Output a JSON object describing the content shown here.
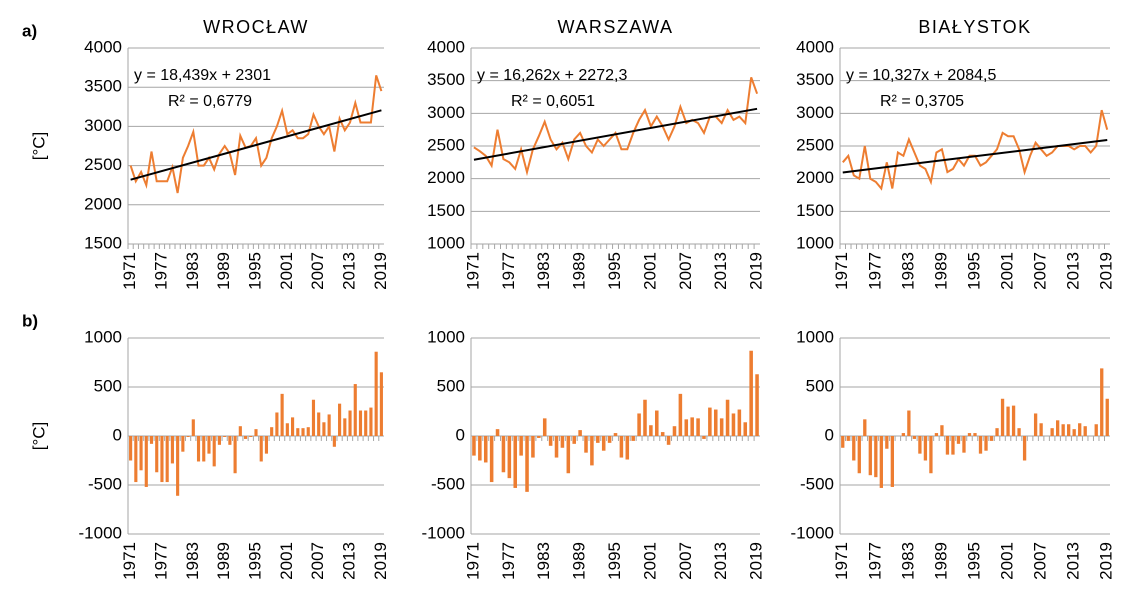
{
  "chart_data": [
    {
      "type": "line",
      "label": "a)",
      "title": "WROCŁAW",
      "ylabel": "[°C]",
      "color": "#ed7d31",
      "trend_color": "#000000",
      "equation": "y = 18,439x + 2301",
      "r2": "R² = 0,6779",
      "x": [
        1971,
        1972,
        1973,
        1974,
        1975,
        1976,
        1977,
        1978,
        1979,
        1980,
        1981,
        1982,
        1983,
        1984,
        1985,
        1986,
        1987,
        1988,
        1989,
        1990,
        1991,
        1992,
        1993,
        1994,
        1995,
        1996,
        1997,
        1998,
        1999,
        2000,
        2001,
        2002,
        2003,
        2004,
        2005,
        2006,
        2007,
        2008,
        2009,
        2010,
        2011,
        2012,
        2013,
        2014,
        2015,
        2016,
        2017,
        2018,
        2019
      ],
      "values": [
        2500,
        2300,
        2420,
        2250,
        2680,
        2300,
        2300,
        2300,
        2480,
        2150,
        2600,
        2750,
        2930,
        2500,
        2500,
        2600,
        2450,
        2650,
        2750,
        2650,
        2380,
        2880,
        2730,
        2750,
        2850,
        2500,
        2600,
        2850,
        3000,
        3200,
        2900,
        2950,
        2850,
        2850,
        2900,
        3150,
        3000,
        2900,
        3000,
        2680,
        3100,
        2950,
        3050,
        3300,
        3050,
        3050,
        3050,
        3650,
        3450
      ],
      "trendline": [
        2320,
        3205
      ],
      "xticks": [
        1971,
        1977,
        1983,
        1989,
        1995,
        2001,
        2007,
        2013,
        2019
      ],
      "ylim": [
        1500,
        4000
      ],
      "yticks": [
        1500,
        2000,
        2500,
        3000,
        3500,
        4000
      ],
      "grid": true
    },
    {
      "type": "line",
      "title": "WARSZAWA",
      "color": "#ed7d31",
      "trend_color": "#000000",
      "equation": "y = 16,262x + 2272,3",
      "r2": "R² = 0,6051",
      "x": [
        1971,
        1972,
        1973,
        1974,
        1975,
        1976,
        1977,
        1978,
        1979,
        1980,
        1981,
        1982,
        1983,
        1984,
        1985,
        1986,
        1987,
        1988,
        1989,
        1990,
        1991,
        1992,
        1993,
        1994,
        1995,
        1996,
        1997,
        1998,
        1999,
        2000,
        2001,
        2002,
        2003,
        2004,
        2005,
        2006,
        2007,
        2008,
        2009,
        2010,
        2011,
        2012,
        2013,
        2014,
        2015,
        2016,
        2017,
        2018,
        2019
      ],
      "values": [
        2480,
        2420,
        2350,
        2200,
        2750,
        2300,
        2250,
        2150,
        2450,
        2100,
        2450,
        2650,
        2870,
        2600,
        2450,
        2550,
        2300,
        2600,
        2700,
        2500,
        2400,
        2600,
        2500,
        2600,
        2700,
        2450,
        2450,
        2700,
        2900,
        3050,
        2800,
        2950,
        2800,
        2600,
        2800,
        3100,
        2850,
        2900,
        2850,
        2700,
        2950,
        2950,
        2850,
        3050,
        2900,
        2950,
        2850,
        3550,
        3300
      ],
      "trendline": [
        2289,
        3069
      ],
      "xticks": [
        1971,
        1977,
        1983,
        1989,
        1995,
        2001,
        2007,
        2013,
        2019
      ],
      "ylim": [
        1000,
        4000
      ],
      "yticks": [
        1000,
        1500,
        2000,
        2500,
        3000,
        3500,
        4000
      ],
      "grid": true
    },
    {
      "type": "line",
      "title": "BIAŁYSTOK",
      "color": "#ed7d31",
      "trend_color": "#000000",
      "equation": "y = 10,327x + 2084,5",
      "r2": "R² = 0,3705",
      "x": [
        1971,
        1972,
        1973,
        1974,
        1975,
        1976,
        1977,
        1978,
        1979,
        1980,
        1981,
        1982,
        1983,
        1984,
        1985,
        1986,
        1987,
        1988,
        1989,
        1990,
        1991,
        1992,
        1993,
        1994,
        1995,
        1996,
        1997,
        1998,
        1999,
        2000,
        2001,
        2002,
        2003,
        2004,
        2005,
        2006,
        2007,
        2008,
        2009,
        2010,
        2011,
        2012,
        2013,
        2014,
        2015,
        2016,
        2017,
        2018,
        2019
      ],
      "values": [
        2250,
        2350,
        2050,
        2000,
        2500,
        2000,
        1950,
        1850,
        2250,
        1850,
        2400,
        2350,
        2600,
        2400,
        2200,
        2150,
        1950,
        2400,
        2450,
        2100,
        2150,
        2300,
        2200,
        2350,
        2350,
        2200,
        2250,
        2350,
        2450,
        2700,
        2650,
        2650,
        2450,
        2100,
        2350,
        2550,
        2450,
        2350,
        2400,
        2500,
        2500,
        2500,
        2450,
        2500,
        2500,
        2400,
        2500,
        3050,
        2750
      ],
      "trendline": [
        2095,
        2591
      ],
      "xticks": [
        1971,
        1977,
        1983,
        1989,
        1995,
        2001,
        2007,
        2013,
        2019
      ],
      "ylim": [
        1000,
        4000
      ],
      "yticks": [
        1000,
        1500,
        2000,
        2500,
        3000,
        3500,
        4000
      ],
      "grid": true
    },
    {
      "type": "bar",
      "label": "b)",
      "ylabel": "[°C]",
      "color": "#ed7d31",
      "x": [
        1971,
        1972,
        1973,
        1974,
        1975,
        1976,
        1977,
        1978,
        1979,
        1980,
        1981,
        1982,
        1983,
        1984,
        1985,
        1986,
        1987,
        1988,
        1989,
        1990,
        1991,
        1992,
        1993,
        1994,
        1995,
        1996,
        1997,
        1998,
        1999,
        2000,
        2001,
        2002,
        2003,
        2004,
        2005,
        2006,
        2007,
        2008,
        2009,
        2010,
        2011,
        2012,
        2013,
        2014,
        2015,
        2016,
        2017,
        2018,
        2019
      ],
      "values": [
        -250,
        -470,
        -350,
        -520,
        -80,
        -370,
        -470,
        -470,
        -280,
        -610,
        -160,
        -10,
        170,
        -260,
        -260,
        -180,
        -310,
        -90,
        -10,
        -90,
        -380,
        100,
        -30,
        -10,
        70,
        -260,
        -180,
        90,
        240,
        430,
        130,
        190,
        80,
        80,
        90,
        370,
        240,
        140,
        220,
        -110,
        330,
        180,
        260,
        530,
        260,
        260,
        290,
        860,
        650
      ],
      "xticks": [
        1971,
        1977,
        1983,
        1989,
        1995,
        2001,
        2007,
        2013,
        2019
      ],
      "ylim": [
        -1000,
        1000
      ],
      "yticks": [
        -1000,
        -500,
        0,
        500,
        1000
      ],
      "grid": true
    },
    {
      "type": "bar",
      "color": "#ed7d31",
      "x": [
        1971,
        1972,
        1973,
        1974,
        1975,
        1976,
        1977,
        1978,
        1979,
        1980,
        1981,
        1982,
        1983,
        1984,
        1985,
        1986,
        1987,
        1988,
        1989,
        1990,
        1991,
        1992,
        1993,
        1994,
        1995,
        1996,
        1997,
        1998,
        1999,
        2000,
        2001,
        2002,
        2003,
        2004,
        2005,
        2006,
        2007,
        2008,
        2009,
        2010,
        2011,
        2012,
        2013,
        2014,
        2015,
        2016,
        2017,
        2018,
        2019
      ],
      "values": [
        -200,
        -250,
        -270,
        -470,
        70,
        -370,
        -430,
        -530,
        -200,
        -570,
        -220,
        -20,
        180,
        -100,
        -220,
        -120,
        -380,
        -80,
        60,
        -170,
        -300,
        -70,
        -150,
        -70,
        30,
        -220,
        -240,
        -50,
        230,
        370,
        110,
        260,
        40,
        -90,
        100,
        430,
        170,
        190,
        180,
        -30,
        290,
        270,
        180,
        370,
        230,
        270,
        140,
        870,
        630
      ],
      "xticks": [
        1971,
        1977,
        1983,
        1989,
        1995,
        2001,
        2007,
        2013,
        2019
      ],
      "ylim": [
        -1000,
        1000
      ],
      "yticks": [
        -1000,
        -500,
        0,
        500,
        1000
      ],
      "grid": true
    },
    {
      "type": "bar",
      "color": "#ed7d31",
      "x": [
        1971,
        1972,
        1973,
        1974,
        1975,
        1976,
        1977,
        1978,
        1979,
        1980,
        1981,
        1982,
        1983,
        1984,
        1985,
        1986,
        1987,
        1988,
        1989,
        1990,
        1991,
        1992,
        1993,
        1994,
        1995,
        1996,
        1997,
        1998,
        1999,
        2000,
        2001,
        2002,
        2003,
        2004,
        2005,
        2006,
        2007,
        2008,
        2009,
        2010,
        2011,
        2012,
        2013,
        2014,
        2015,
        2016,
        2017,
        2018,
        2019
      ],
      "values": [
        -120,
        -50,
        -250,
        -380,
        170,
        -400,
        -420,
        -530,
        -130,
        -520,
        0,
        30,
        260,
        -30,
        -180,
        -250,
        -380,
        30,
        110,
        -190,
        -190,
        -80,
        -170,
        30,
        30,
        -180,
        -150,
        -50,
        80,
        380,
        300,
        310,
        80,
        -250,
        0,
        230,
        130,
        0,
        80,
        160,
        120,
        120,
        70,
        130,
        100,
        0,
        120,
        690,
        380
      ],
      "xticks": [
        1971,
        1977,
        1983,
        1989,
        1995,
        2001,
        2007,
        2013,
        2019
      ],
      "ylim": [
        -1000,
        1000
      ],
      "yticks": [
        -1000,
        -500,
        0,
        500,
        1000
      ],
      "grid": true
    }
  ]
}
